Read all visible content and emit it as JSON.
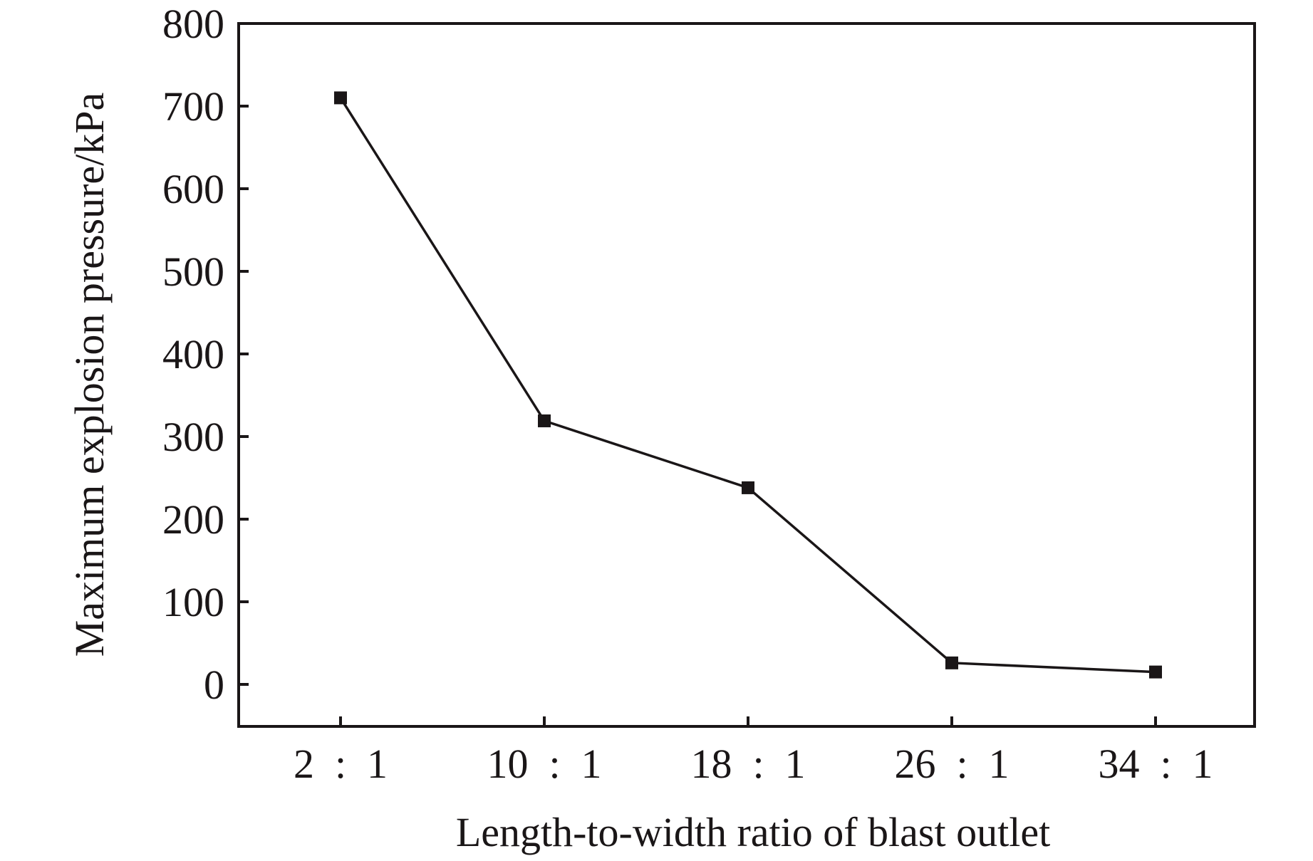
{
  "chart_data": {
    "type": "line",
    "title": "",
    "xlabel": "Length-to-width ratio of blast outlet",
    "ylabel": "Maximum explosion pressure/kPa",
    "categories": [
      "2 : 1",
      "10 : 1",
      "18 : 1",
      "26 : 1",
      "34 : 1"
    ],
    "series": [
      {
        "values": [
          710,
          319,
          238,
          26,
          15
        ],
        "marker": "square",
        "color": "#1a1617"
      }
    ],
    "ylim": [
      -50,
      800
    ],
    "yticks": [
      0,
      100,
      200,
      300,
      400,
      500,
      600,
      700,
      800
    ],
    "ytick_labels": [
      "0",
      "100",
      "200",
      "300",
      "400",
      "500",
      "600",
      "700",
      "800"
    ],
    "grid": false,
    "legend": "none"
  }
}
